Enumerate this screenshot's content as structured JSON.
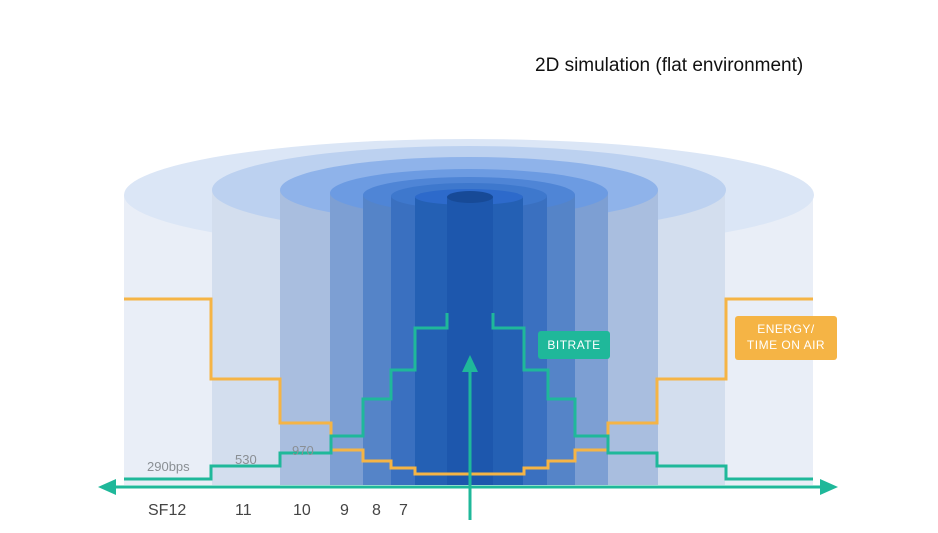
{
  "title": "2D simulation (flat environment)",
  "bitrates": [
    "290bps",
    "530",
    "970"
  ],
  "spreading_factors": [
    "SF12",
    "11",
    "10",
    "9",
    "8",
    "7"
  ],
  "labels": {
    "bitrate": "BITRATE",
    "energy_line1": "ENERGY/",
    "energy_line2": "TIME ON AIR"
  },
  "colors": {
    "bitrate": "#1fb89a",
    "energy": "#f5b445",
    "zone_light": "#dfe8f5",
    "zone_dark": "#1d5fb8"
  }
}
